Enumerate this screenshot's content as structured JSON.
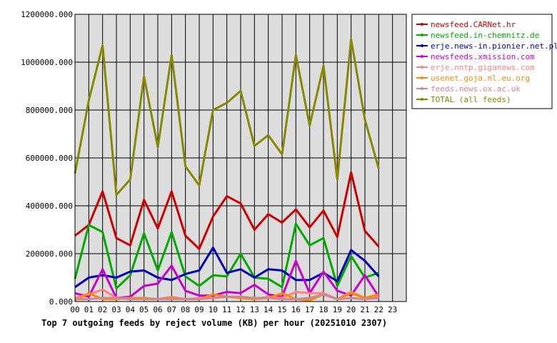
{
  "chart_data": {
    "type": "line",
    "title": "Top 7 outgoing feeds by reject volume (KB) per hour (20251010 2307)",
    "xlabel": "",
    "ylabel": "",
    "categories": [
      "00",
      "01",
      "02",
      "03",
      "04",
      "05",
      "06",
      "07",
      "08",
      "09",
      "10",
      "11",
      "12",
      "13",
      "14",
      "15",
      "16",
      "17",
      "18",
      "19",
      "20",
      "21",
      "22",
      "23"
    ],
    "ylim": [
      0,
      1200000
    ],
    "yticks": [
      "0.000",
      "200000.000",
      "400000.000",
      "600000.000",
      "800000.000",
      "1000000.000",
      "1200000.000"
    ],
    "ytick_values": [
      0,
      200000,
      400000,
      600000,
      800000,
      1000000,
      1200000
    ],
    "grid": true,
    "legend_position": "right",
    "series": [
      {
        "name": "newsfeed.CARNet.hr",
        "color": "#cc0000",
        "values": [
          275000,
          320000,
          460000,
          265000,
          235000,
          425000,
          305000,
          460000,
          275000,
          220000,
          355000,
          440000,
          410000,
          300000,
          365000,
          330000,
          385000,
          310000,
          380000,
          270000,
          540000,
          295000,
          230000,
          null
        ]
      },
      {
        "name": "newsfeed.in-chemnitz.de",
        "color": "#00aa00",
        "values": [
          95000,
          320000,
          290000,
          55000,
          110000,
          285000,
          130000,
          290000,
          105000,
          65000,
          110000,
          105000,
          200000,
          100000,
          95000,
          60000,
          325000,
          235000,
          265000,
          65000,
          190000,
          100000,
          120000,
          null
        ]
      },
      {
        "name": "erje.news-in.pionier.net.pl",
        "color": "#0000bb",
        "values": [
          60000,
          100000,
          110000,
          100000,
          125000,
          130000,
          100000,
          90000,
          115000,
          130000,
          225000,
          120000,
          135000,
          100000,
          135000,
          130000,
          90000,
          90000,
          120000,
          85000,
          215000,
          170000,
          105000,
          null
        ]
      },
      {
        "name": "newsfeeds.xmission.com",
        "color": "#cc00cc",
        "values": [
          35000,
          20000,
          135000,
          15000,
          20000,
          65000,
          75000,
          150000,
          45000,
          25000,
          25000,
          40000,
          35000,
          70000,
          30000,
          20000,
          170000,
          35000,
          125000,
          45000,
          25000,
          110000,
          20000,
          null
        ]
      },
      {
        "name": "erje.nntp.giganews.com",
        "color": "#ff8080",
        "values": [
          15000,
          30000,
          50000,
          15000,
          15000,
          10000,
          10000,
          20000,
          10000,
          15000,
          15000,
          20000,
          15000,
          10000,
          20000,
          15000,
          40000,
          35000,
          35000,
          10000,
          40000,
          15000,
          20000,
          null
        ]
      },
      {
        "name": "usenet.goja.nl.eu.org",
        "color": "#ff8800",
        "values": [
          5000,
          35000,
          10000,
          10000,
          15000,
          15000,
          10000,
          15000,
          10000,
          10000,
          30000,
          20000,
          15000,
          10000,
          15000,
          35000,
          10000,
          5000,
          30000,
          10000,
          35000,
          15000,
          30000,
          null
        ]
      },
      {
        "name": "feeds.news.ox.ac.uk",
        "color": "#cc8899",
        "values": [
          10000,
          10000,
          15000,
          15000,
          10000,
          10000,
          10000,
          10000,
          10000,
          10000,
          15000,
          20000,
          20000,
          15000,
          15000,
          10000,
          10000,
          15000,
          30000,
          10000,
          15000,
          10000,
          15000,
          null
        ]
      },
      {
        "name": "TOTAL (all feeds)",
        "color": "#888800",
        "values": [
          535000,
          840000,
          1070000,
          445000,
          510000,
          940000,
          645000,
          1030000,
          565000,
          485000,
          800000,
          830000,
          880000,
          650000,
          695000,
          615000,
          1030000,
          735000,
          985000,
          510000,
          1095000,
          760000,
          555000,
          null
        ]
      }
    ]
  }
}
